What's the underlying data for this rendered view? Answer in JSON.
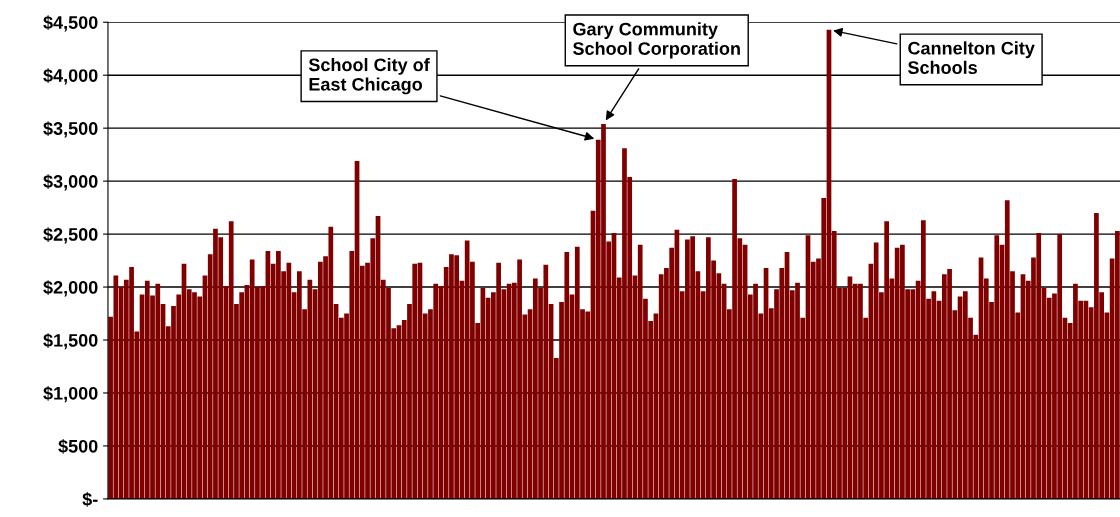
{
  "chart_data": {
    "type": "bar",
    "color": "#800000",
    "grid": "y",
    "ylim": [
      0,
      4500
    ],
    "yticks": [
      {
        "value": 0,
        "label": "$-"
      },
      {
        "value": 500,
        "label": "$500"
      },
      {
        "value": 1000,
        "label": "$1,000"
      },
      {
        "value": 1500,
        "label": "$1,500"
      },
      {
        "value": 2000,
        "label": "$2,000"
      },
      {
        "value": 2500,
        "label": "$2,500"
      },
      {
        "value": 3000,
        "label": "$3,000"
      },
      {
        "value": 3500,
        "label": "$3,500"
      },
      {
        "value": 4000,
        "label": "$4,000"
      },
      {
        "value": 4500,
        "label": "$4,500"
      }
    ],
    "values": [
      1720,
      2110,
      2000,
      2070,
      2190,
      1580,
      1930,
      2060,
      1920,
      2030,
      1840,
      1630,
      1820,
      1930,
      2220,
      1980,
      1950,
      1910,
      2110,
      2310,
      2550,
      2470,
      2010,
      2620,
      1840,
      1950,
      2020,
      2260,
      2000,
      2010,
      2340,
      2220,
      2340,
      2150,
      2230,
      1950,
      2150,
      1790,
      2070,
      1980,
      2240,
      2290,
      2570,
      1840,
      1710,
      1750,
      2340,
      3190,
      2200,
      2230,
      2460,
      2670,
      2070,
      1990,
      1610,
      1640,
      1690,
      1840,
      2220,
      2230,
      1750,
      1790,
      2030,
      2010,
      2190,
      2310,
      2300,
      2060,
      2440,
      2240,
      1660,
      1990,
      1900,
      1950,
      2230,
      1980,
      2030,
      2040,
      2260,
      1740,
      1790,
      2080,
      1990,
      2210,
      1840,
      1330,
      1860,
      2330,
      1930,
      2380,
      1790,
      1770,
      2720,
      3390,
      3540,
      2430,
      2510,
      2090,
      3310,
      3040,
      2110,
      2400,
      1890,
      1680,
      1750,
      2120,
      2180,
      2370,
      2540,
      1960,
      2450,
      2480,
      2150,
      1960,
      2470,
      2250,
      2130,
      2030,
      1790,
      3020,
      2460,
      2400,
      1930,
      2030,
      1750,
      2180,
      1800,
      1980,
      2180,
      2330,
      1970,
      2040,
      1710,
      2490,
      2240,
      2270,
      2840,
      4430,
      2530,
      1990,
      1990,
      2100,
      2030,
      2030,
      1710,
      2220,
      2420,
      1950,
      2620,
      2080,
      2370,
      2400,
      1980,
      1980,
      2060,
      2630,
      1890,
      1960,
      1870,
      2120,
      2170,
      1780,
      1910,
      1960,
      1710,
      1550,
      2280,
      2080,
      1860,
      2490,
      2400,
      2820,
      2150,
      1760,
      2120,
      2060,
      2280,
      2510,
      1990,
      1900,
      1940,
      2500,
      1710,
      1660,
      2030,
      1870,
      1870,
      1810,
      2700,
      1950,
      1760,
      2270,
      2530
    ],
    "categories": [
      null,
      null,
      null,
      null,
      null,
      null,
      null,
      null,
      null,
      null,
      null,
      null,
      null,
      null,
      null,
      null,
      null,
      null,
      null,
      null,
      null,
      null,
      null,
      null,
      null,
      null,
      null,
      null,
      null,
      null,
      null,
      null,
      null,
      null,
      null,
      null,
      null,
      null,
      null,
      null,
      null,
      null,
      null,
      null,
      null,
      null,
      null,
      null,
      null,
      null,
      null,
      null,
      null,
      null,
      null,
      null,
      null,
      null,
      null,
      null,
      null,
      null,
      null,
      null,
      null,
      null,
      null,
      null,
      null,
      null,
      null,
      null,
      null,
      null,
      null,
      null,
      null,
      null,
      null,
      null,
      null,
      null,
      null,
      null,
      null,
      null,
      null,
      null,
      null,
      null,
      null,
      null,
      null,
      null,
      null,
      null,
      null,
      null,
      null,
      null,
      null,
      null,
      null,
      null,
      null,
      null,
      null,
      null,
      null,
      null,
      null,
      null,
      null,
      null,
      null,
      null,
      null,
      null,
      null,
      null,
      null,
      null,
      null,
      null,
      null,
      null,
      null,
      null,
      null,
      null,
      null,
      null,
      null,
      null,
      null,
      null,
      null,
      null,
      null,
      null,
      null,
      null,
      null,
      null,
      null,
      null,
      null,
      null,
      null,
      null,
      null,
      null,
      null,
      null,
      null,
      null,
      null,
      null,
      null,
      null,
      null,
      null,
      null,
      null,
      null,
      null,
      null,
      null,
      null,
      null,
      null,
      null,
      null,
      null,
      null,
      null,
      null,
      null,
      null,
      null,
      null,
      null,
      null,
      null,
      null,
      null,
      null,
      null,
      null,
      null,
      null,
      null,
      null
    ],
    "annotations": [
      "School City of\nEast Chicago",
      "Gary Community\nSchool Corporation",
      "Cannelton City\nSchools"
    ]
  }
}
